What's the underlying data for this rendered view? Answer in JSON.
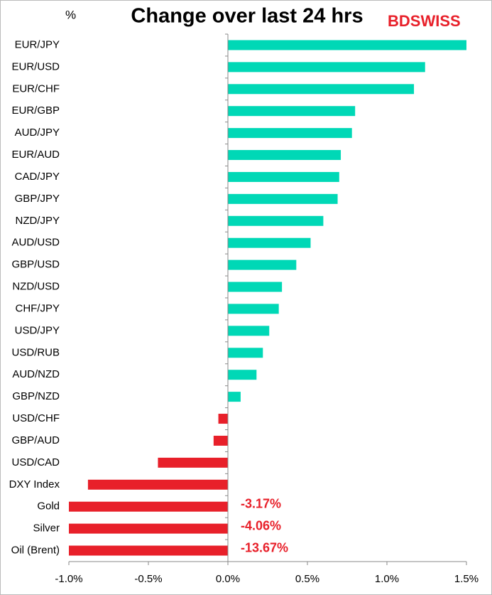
{
  "chart_data": {
    "type": "barh",
    "title": "Change over last 24 hrs",
    "logo": "BDSWISS",
    "ylabel": "%",
    "categories": [
      "EUR/JPY",
      "EUR/USD",
      "EUR/CHF",
      "EUR/GBP",
      "AUD/JPY",
      "EUR/AUD",
      "CAD/JPY",
      "GBP/JPY",
      "NZD/JPY",
      "AUD/USD",
      "GBP/USD",
      "NZD/USD",
      "CHF/JPY",
      "USD/JPY",
      "USD/RUB",
      "AUD/NZD",
      "GBP/NZD",
      "USD/CHF",
      "GBP/AUD",
      "USD/CAD",
      "DXY Index",
      "Gold",
      "Silver",
      "Oil (Brent)"
    ],
    "values": [
      1.5,
      1.24,
      1.17,
      0.8,
      0.78,
      0.71,
      0.7,
      0.69,
      0.6,
      0.52,
      0.43,
      0.34,
      0.32,
      0.26,
      0.22,
      0.18,
      0.08,
      -0.06,
      -0.09,
      -0.44,
      -0.88,
      -3.17,
      -4.06,
      -13.67
    ],
    "value_labels": [
      null,
      null,
      null,
      null,
      null,
      null,
      null,
      null,
      null,
      null,
      null,
      null,
      null,
      null,
      null,
      null,
      null,
      null,
      null,
      null,
      null,
      "-3.17%",
      "-4.06%",
      "-13.67%"
    ],
    "positive_color": "#00d8b6",
    "negative_color": "#e8202a",
    "xlim": [
      -1,
      1.5
    ],
    "xticks": [
      {
        "value": -1,
        "label": "-1.0%"
      },
      {
        "value": -0.5,
        "label": "-0.5%"
      },
      {
        "value": 0,
        "label": "0.0%"
      },
      {
        "value": 0.5,
        "label": "0.5%"
      },
      {
        "value": 1,
        "label": "1.0%"
      },
      {
        "value": 1.5,
        "label": "1.5%"
      }
    ],
    "grid": false
  }
}
